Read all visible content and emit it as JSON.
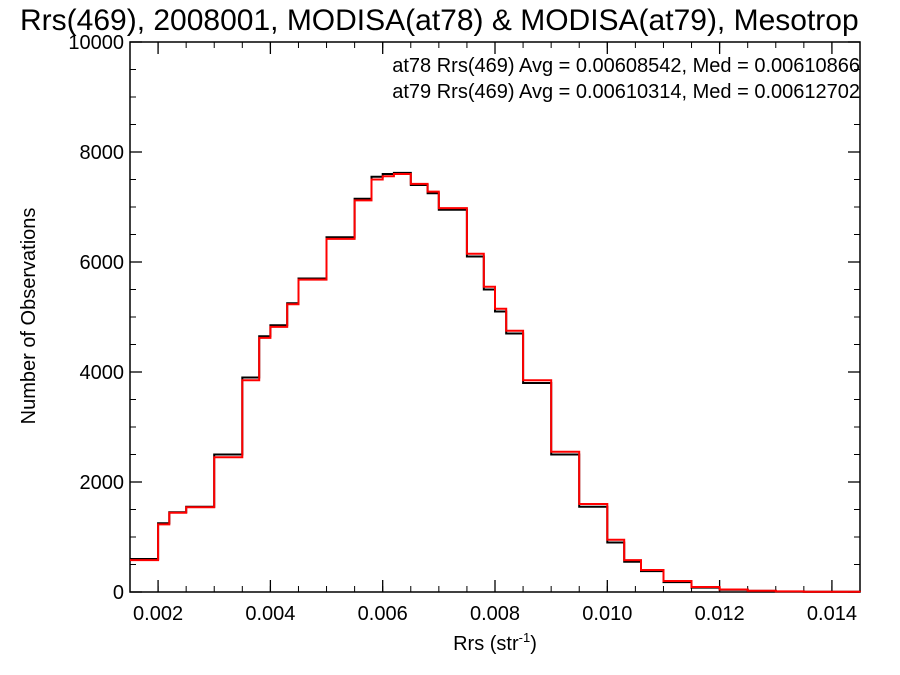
{
  "chart_data": {
    "type": "line",
    "title": "Rrs(469), 2008001, MODISA(at78) & MODISA(at79), Mesotrop",
    "xlabel_main": "Rrs (str",
    "xlabel_sup": "-1",
    "xlabel_close": ")",
    "ylabel": "Number of Observations",
    "xlim": [
      0.0015,
      0.0145
    ],
    "ylim": [
      0,
      10000
    ],
    "x_ticks": [
      0.002,
      0.004,
      0.006,
      0.008,
      0.01,
      0.012,
      0.014
    ],
    "x_tick_labels": [
      "0.002",
      "0.004",
      "0.006",
      "0.008",
      "0.010",
      "0.012",
      "0.014"
    ],
    "y_ticks": [
      0,
      2000,
      4000,
      6000,
      8000,
      10000
    ],
    "y_tick_labels": [
      "0",
      "2000",
      "4000",
      "6000",
      "8000",
      "10000"
    ],
    "step": "histogram",
    "series": [
      {
        "name": "at78",
        "color": "#000000",
        "annotation": "at78 Rrs(469) Avg = 0.00608542, Med = 0.00610866",
        "x": [
          0.0015,
          0.002,
          0.0022,
          0.0025,
          0.003,
          0.0035,
          0.0038,
          0.004,
          0.0043,
          0.0045,
          0.005,
          0.0055,
          0.0058,
          0.006,
          0.0062,
          0.0065,
          0.0068,
          0.007,
          0.0075,
          0.0078,
          0.008,
          0.0082,
          0.0085,
          0.009,
          0.0095,
          0.01,
          0.0103,
          0.0106,
          0.011,
          0.0115,
          0.012,
          0.0125,
          0.013,
          0.0135,
          0.014,
          0.0145
        ],
        "y": [
          600,
          1250,
          1450,
          1550,
          2500,
          3900,
          4650,
          4850,
          5250,
          5700,
          6450,
          7150,
          7550,
          7600,
          7620,
          7400,
          7250,
          6950,
          6100,
          5500,
          5100,
          4700,
          3800,
          2500,
          1550,
          900,
          550,
          380,
          180,
          80,
          40,
          20,
          10,
          5,
          3,
          2
        ]
      },
      {
        "name": "at79",
        "color": "#ff0000",
        "annotation": "at79 Rrs(469) Avg = 0.00610314, Med = 0.00612702",
        "x": [
          0.0015,
          0.002,
          0.0022,
          0.0025,
          0.003,
          0.0035,
          0.0038,
          0.004,
          0.0043,
          0.0045,
          0.005,
          0.0055,
          0.0058,
          0.006,
          0.0062,
          0.0065,
          0.0068,
          0.007,
          0.0075,
          0.0078,
          0.008,
          0.0082,
          0.0085,
          0.009,
          0.0095,
          0.01,
          0.0103,
          0.0106,
          0.011,
          0.0115,
          0.012,
          0.0125,
          0.013,
          0.0135,
          0.014,
          0.0145
        ],
        "y": [
          580,
          1230,
          1440,
          1540,
          2450,
          3850,
          4620,
          4820,
          5230,
          5680,
          6420,
          7120,
          7500,
          7560,
          7600,
          7420,
          7280,
          6980,
          6150,
          5550,
          5150,
          4750,
          3850,
          2550,
          1600,
          950,
          580,
          400,
          200,
          90,
          45,
          22,
          11,
          6,
          3,
          2
        ]
      }
    ],
    "legend_placement": "top-right"
  }
}
